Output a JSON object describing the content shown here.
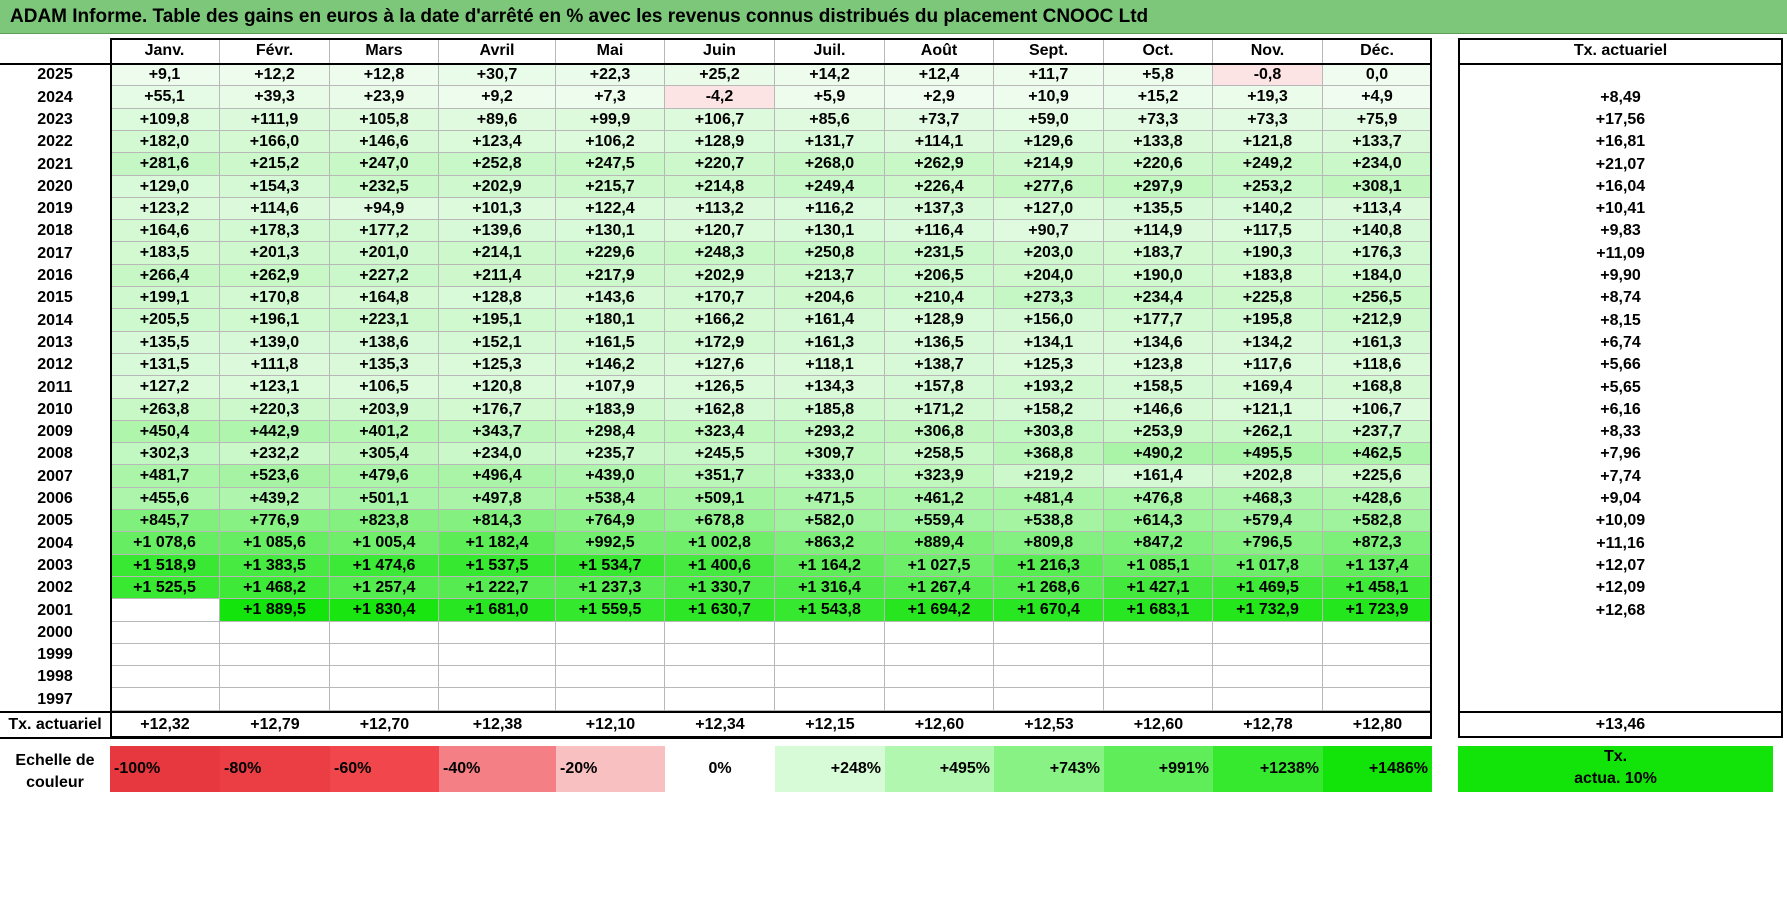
{
  "title": "ADAM Informe. Table des gains en euros à la date d'arrêté en % avec les revenus connus distribués du placement CNOOC Ltd",
  "months": [
    "Janv.",
    "Févr.",
    "Mars",
    "Avril",
    "Mai",
    "Juin",
    "Juil.",
    "Août",
    "Sept.",
    "Oct.",
    "Nov.",
    "Déc."
  ],
  "rate_header": "Tx. actuariel",
  "rows": [
    {
      "year": "2025",
      "values": [
        "+9,1",
        "+12,2",
        "+12,8",
        "+30,7",
        "+22,3",
        "+25,2",
        "+14,2",
        "+12,4",
        "+11,7",
        "+5,8",
        "-0,8",
        "0,0"
      ],
      "rate": ""
    },
    {
      "year": "2024",
      "values": [
        "+55,1",
        "+39,3",
        "+23,9",
        "+9,2",
        "+7,3",
        "-4,2",
        "+5,9",
        "+2,9",
        "+10,9",
        "+15,2",
        "+19,3",
        "+4,9"
      ],
      "rate": "+8,49"
    },
    {
      "year": "2023",
      "values": [
        "+109,8",
        "+111,9",
        "+105,8",
        "+89,6",
        "+99,9",
        "+106,7",
        "+85,6",
        "+73,7",
        "+59,0",
        "+73,3",
        "+73,3",
        "+75,9"
      ],
      "rate": "+17,56"
    },
    {
      "year": "2022",
      "values": [
        "+182,0",
        "+166,0",
        "+146,6",
        "+123,4",
        "+106,2",
        "+128,9",
        "+131,7",
        "+114,1",
        "+129,6",
        "+133,8",
        "+121,8",
        "+133,7"
      ],
      "rate": "+16,81"
    },
    {
      "year": "2021",
      "values": [
        "+281,6",
        "+215,2",
        "+247,0",
        "+252,8",
        "+247,5",
        "+220,7",
        "+268,0",
        "+262,9",
        "+214,9",
        "+220,6",
        "+249,2",
        "+234,0"
      ],
      "rate": "+21,07"
    },
    {
      "year": "2020",
      "values": [
        "+129,0",
        "+154,3",
        "+232,5",
        "+202,9",
        "+215,7",
        "+214,8",
        "+249,4",
        "+226,4",
        "+277,6",
        "+297,9",
        "+253,2",
        "+308,1"
      ],
      "rate": "+16,04"
    },
    {
      "year": "2019",
      "values": [
        "+123,2",
        "+114,6",
        "+94,9",
        "+101,3",
        "+122,4",
        "+113,2",
        "+116,2",
        "+137,3",
        "+127,0",
        "+135,5",
        "+140,2",
        "+113,4"
      ],
      "rate": "+10,41"
    },
    {
      "year": "2018",
      "values": [
        "+164,6",
        "+178,3",
        "+177,2",
        "+139,6",
        "+130,1",
        "+120,7",
        "+130,1",
        "+116,4",
        "+90,7",
        "+114,9",
        "+117,5",
        "+140,8"
      ],
      "rate": "+9,83"
    },
    {
      "year": "2017",
      "values": [
        "+183,5",
        "+201,3",
        "+201,0",
        "+214,1",
        "+229,6",
        "+248,3",
        "+250,8",
        "+231,5",
        "+203,0",
        "+183,7",
        "+190,3",
        "+176,3"
      ],
      "rate": "+11,09"
    },
    {
      "year": "2016",
      "values": [
        "+266,4",
        "+262,9",
        "+227,2",
        "+211,4",
        "+217,9",
        "+202,9",
        "+213,7",
        "+206,5",
        "+204,0",
        "+190,0",
        "+183,8",
        "+184,0"
      ],
      "rate": "+9,90"
    },
    {
      "year": "2015",
      "values": [
        "+199,1",
        "+170,8",
        "+164,8",
        "+128,8",
        "+143,6",
        "+170,7",
        "+204,6",
        "+210,4",
        "+273,3",
        "+234,4",
        "+225,8",
        "+256,5"
      ],
      "rate": "+8,74"
    },
    {
      "year": "2014",
      "values": [
        "+205,5",
        "+196,1",
        "+223,1",
        "+195,1",
        "+180,1",
        "+166,2",
        "+161,4",
        "+128,9",
        "+156,0",
        "+177,7",
        "+195,8",
        "+212,9"
      ],
      "rate": "+8,15"
    },
    {
      "year": "2013",
      "values": [
        "+135,5",
        "+139,0",
        "+138,6",
        "+152,1",
        "+161,5",
        "+172,9",
        "+161,3",
        "+136,5",
        "+134,1",
        "+134,6",
        "+134,2",
        "+161,3"
      ],
      "rate": "+6,74"
    },
    {
      "year": "2012",
      "values": [
        "+131,5",
        "+111,8",
        "+135,3",
        "+125,3",
        "+146,2",
        "+127,6",
        "+118,1",
        "+138,7",
        "+125,3",
        "+123,8",
        "+117,6",
        "+118,6"
      ],
      "rate": "+5,66"
    },
    {
      "year": "2011",
      "values": [
        "+127,2",
        "+123,1",
        "+106,5",
        "+120,8",
        "+107,9",
        "+126,5",
        "+134,3",
        "+157,8",
        "+193,2",
        "+158,5",
        "+169,4",
        "+168,8"
      ],
      "rate": "+5,65"
    },
    {
      "year": "2010",
      "values": [
        "+263,8",
        "+220,3",
        "+203,9",
        "+176,7",
        "+183,9",
        "+162,8",
        "+185,8",
        "+171,2",
        "+158,2",
        "+146,6",
        "+121,1",
        "+106,7"
      ],
      "rate": "+6,16"
    },
    {
      "year": "2009",
      "values": [
        "+450,4",
        "+442,9",
        "+401,2",
        "+343,7",
        "+298,4",
        "+323,4",
        "+293,2",
        "+306,8",
        "+303,8",
        "+253,9",
        "+262,1",
        "+237,7"
      ],
      "rate": "+8,33"
    },
    {
      "year": "2008",
      "values": [
        "+302,3",
        "+232,2",
        "+305,4",
        "+234,0",
        "+235,7",
        "+245,5",
        "+309,7",
        "+258,5",
        "+368,8",
        "+490,2",
        "+495,5",
        "+462,5"
      ],
      "rate": "+7,96"
    },
    {
      "year": "2007",
      "values": [
        "+481,7",
        "+523,6",
        "+479,6",
        "+496,4",
        "+439,0",
        "+351,7",
        "+333,0",
        "+323,9",
        "+219,2",
        "+161,4",
        "+202,8",
        "+225,6"
      ],
      "rate": "+7,74"
    },
    {
      "year": "2006",
      "values": [
        "+455,6",
        "+439,2",
        "+501,1",
        "+497,8",
        "+538,4",
        "+509,1",
        "+471,5",
        "+461,2",
        "+481,4",
        "+476,8",
        "+468,3",
        "+428,6"
      ],
      "rate": "+9,04"
    },
    {
      "year": "2005",
      "values": [
        "+845,7",
        "+776,9",
        "+823,8",
        "+814,3",
        "+764,9",
        "+678,8",
        "+582,0",
        "+559,4",
        "+538,8",
        "+614,3",
        "+579,4",
        "+582,8"
      ],
      "rate": "+10,09"
    },
    {
      "year": "2004",
      "values": [
        "+1 078,6",
        "+1 085,6",
        "+1 005,4",
        "+1 182,4",
        "+992,5",
        "+1 002,8",
        "+863,2",
        "+889,4",
        "+809,8",
        "+847,2",
        "+796,5",
        "+872,3"
      ],
      "rate": "+11,16"
    },
    {
      "year": "2003",
      "values": [
        "+1 518,9",
        "+1 383,5",
        "+1 474,6",
        "+1 537,5",
        "+1 534,7",
        "+1 400,6",
        "+1 164,2",
        "+1 027,5",
        "+1 216,3",
        "+1 085,1",
        "+1 017,8",
        "+1 137,4"
      ],
      "rate": "+12,07"
    },
    {
      "year": "2002",
      "values": [
        "+1 525,5",
        "+1 468,2",
        "+1 257,4",
        "+1 222,7",
        "+1 237,3",
        "+1 330,7",
        "+1 316,4",
        "+1 267,4",
        "+1 268,6",
        "+1 427,1",
        "+1 469,5",
        "+1 458,1"
      ],
      "rate": "+12,09"
    },
    {
      "year": "2001",
      "values": [
        "",
        "+1 889,5",
        "+1 830,4",
        "+1 681,0",
        "+1 559,5",
        "+1 630,7",
        "+1 543,8",
        "+1 694,2",
        "+1 670,4",
        "+1 683,1",
        "+1 732,9",
        "+1 723,9"
      ],
      "rate": "+12,68"
    },
    {
      "year": "2000",
      "values": [
        "",
        "",
        "",
        "",
        "",
        "",
        "",
        "",
        "",
        "",
        "",
        ""
      ],
      "rate": ""
    },
    {
      "year": "1999",
      "values": [
        "",
        "",
        "",
        "",
        "",
        "",
        "",
        "",
        "",
        "",
        "",
        ""
      ],
      "rate": ""
    },
    {
      "year": "1998",
      "values": [
        "",
        "",
        "",
        "",
        "",
        "",
        "",
        "",
        "",
        "",
        "",
        ""
      ],
      "rate": ""
    },
    {
      "year": "1997",
      "values": [
        "",
        "",
        "",
        "",
        "",
        "",
        "",
        "",
        "",
        "",
        "",
        ""
      ],
      "rate": ""
    }
  ],
  "footer": {
    "label": "Tx. actuariel",
    "values": [
      "+12,32",
      "+12,79",
      "+12,70",
      "+12,38",
      "+12,10",
      "+12,34",
      "+12,15",
      "+12,60",
      "+12,53",
      "+12,60",
      "+12,78",
      "+12,80"
    ],
    "rate": "+13,46"
  },
  "scale": {
    "label_line1": "Echelle de",
    "label_line2": "couleur",
    "items": [
      {
        "text": "-100%",
        "color": "#e8383f",
        "align": "left"
      },
      {
        "text": "-80%",
        "color": "#ea3d44",
        "align": "left"
      },
      {
        "text": "-60%",
        "color": "#f0464c",
        "align": "left"
      },
      {
        "text": "-40%",
        "color": "#f48085",
        "align": "left"
      },
      {
        "text": "-20%",
        "color": "#f9c0c2",
        "align": "left"
      },
      {
        "text": "0%",
        "color": "#ffffff",
        "align": "center"
      },
      {
        "text": "+248%",
        "color": "#d8fbd7",
        "align": "right"
      },
      {
        "text": "+495%",
        "color": "#b1f7af",
        "align": "right"
      },
      {
        "text": "+743%",
        "color": "#88f384",
        "align": "right"
      },
      {
        "text": "+991%",
        "color": "#5fee59",
        "align": "right"
      },
      {
        "text": "+1238%",
        "color": "#36e92f",
        "align": "right"
      },
      {
        "text": "+1486%",
        "color": "#12e40a",
        "align": "right"
      }
    ],
    "rate_line1": "Tx.",
    "rate_line2": "actua. 10%",
    "rate_color": "#12e40a"
  },
  "colors": {
    "title_bg": "#7dc77a",
    "negative": "#fde4e4",
    "green_max": "#12e40a"
  }
}
